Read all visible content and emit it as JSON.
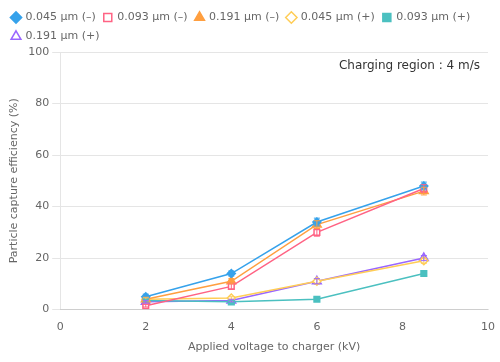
{
  "chart_data": {
    "type": "line",
    "annotation": "Charging region : 4 m/s",
    "xlabel": "Applied voltage to charger (kV)",
    "ylabel": "Particle capture efficiency (%)",
    "x": [
      2,
      4,
      6,
      8.5
    ],
    "xlim": [
      0,
      10
    ],
    "ylim": [
      0,
      100
    ],
    "xticks": [
      0,
      2,
      4,
      6,
      8,
      10
    ],
    "yticks": [
      0,
      20,
      40,
      60,
      80,
      100
    ],
    "grid": "y",
    "legend": "upper left",
    "series": [
      {
        "name": "0.045 μm (–)",
        "values": [
          5,
          14,
          34,
          48
        ],
        "yerr": [
          1.0,
          1.0,
          1.5,
          1.5
        ],
        "marker": "diamond",
        "line_style": "solid"
      },
      {
        "name": "0.093 μm (–)",
        "values": [
          1.5,
          9,
          30,
          47
        ],
        "yerr": [
          0.5,
          1.0,
          1.5,
          1.5
        ],
        "marker": "open_square",
        "line_style": "solid"
      },
      {
        "name": "0.191 μm (–)",
        "values": [
          4,
          11,
          33,
          46
        ],
        "yerr": [
          0.8,
          1.0,
          1.5,
          1.5
        ],
        "marker": "triangle",
        "line_style": "solid"
      },
      {
        "name": "0.045 μm (+)",
        "values": [
          4,
          4.5,
          11,
          19
        ],
        "yerr": [
          0.5,
          0.5,
          1.0,
          1.0
        ],
        "marker": "open_diamond",
        "line_style": "solid"
      },
      {
        "name": "0.093 μm (+)",
        "values": [
          3.5,
          3,
          4,
          14
        ],
        "yerr": [
          0.5,
          0.5,
          0.5,
          1.0
        ],
        "marker": "square",
        "line_style": "solid"
      },
      {
        "name": "0.191 μm (+)",
        "values": [
          3,
          3.5,
          11,
          20
        ],
        "yerr": [
          0.5,
          0.5,
          1.0,
          1.0
        ],
        "marker": "open_triangle",
        "line_style": "solid"
      }
    ]
  }
}
